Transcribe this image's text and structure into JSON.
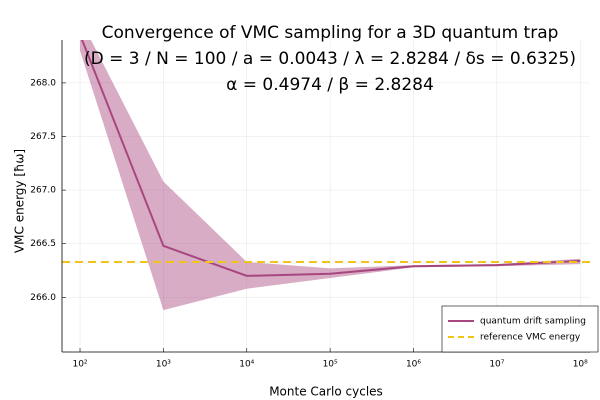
{
  "chart_data": {
    "type": "line",
    "title": [
      "Convergence of VMC sampling for a 3D quantum trap",
      "(D = 3 / N = 100 / a = 0.0043 / λ = 2.8284 / δs = 0.6325)",
      "α = 0.4974 / β = 2.8284"
    ],
    "xlabel": "Monte Carlo cycles",
    "ylabel": "VMC energy [ħω]",
    "xscale": "log",
    "x": [
      100,
      1000,
      10000,
      100000,
      1000000,
      10000000,
      100000000
    ],
    "series": [
      {
        "name": "quantum drift sampling",
        "color": "#a8477f",
        "values": [
          268.45,
          266.48,
          266.2,
          266.22,
          266.29,
          266.3,
          266.34
        ],
        "lower": [
          268.3,
          265.88,
          266.08,
          266.18,
          266.28,
          266.29,
          266.31
        ],
        "upper": [
          268.6,
          267.08,
          266.33,
          266.27,
          266.3,
          266.31,
          266.36
        ]
      }
    ],
    "hline": {
      "name": "reference VMC energy",
      "color": "#f0c419",
      "value": 266.33
    },
    "xlim": [
      60.8,
      131000000
    ],
    "ylim": [
      265.49,
      268.4
    ],
    "xticks": [
      {
        "value": 100,
        "label": "10²"
      },
      {
        "value": 1000,
        "label": "10³"
      },
      {
        "value": 10000,
        "label": "10⁴"
      },
      {
        "value": 100000,
        "label": "10⁵"
      },
      {
        "value": 1000000,
        "label": "10⁶"
      },
      {
        "value": 10000000,
        "label": "10⁷"
      },
      {
        "value": 100000000,
        "label": "10⁸"
      }
    ],
    "yticks": [
      {
        "value": 266,
        "label": "266.0"
      },
      {
        "value": 266.5,
        "label": "266.5"
      },
      {
        "value": 267,
        "label": "267.0"
      },
      {
        "value": 267.5,
        "label": "267.5"
      },
      {
        "value": 268,
        "label": "268.0"
      }
    ],
    "grid": true,
    "legend": "bottom-right"
  }
}
